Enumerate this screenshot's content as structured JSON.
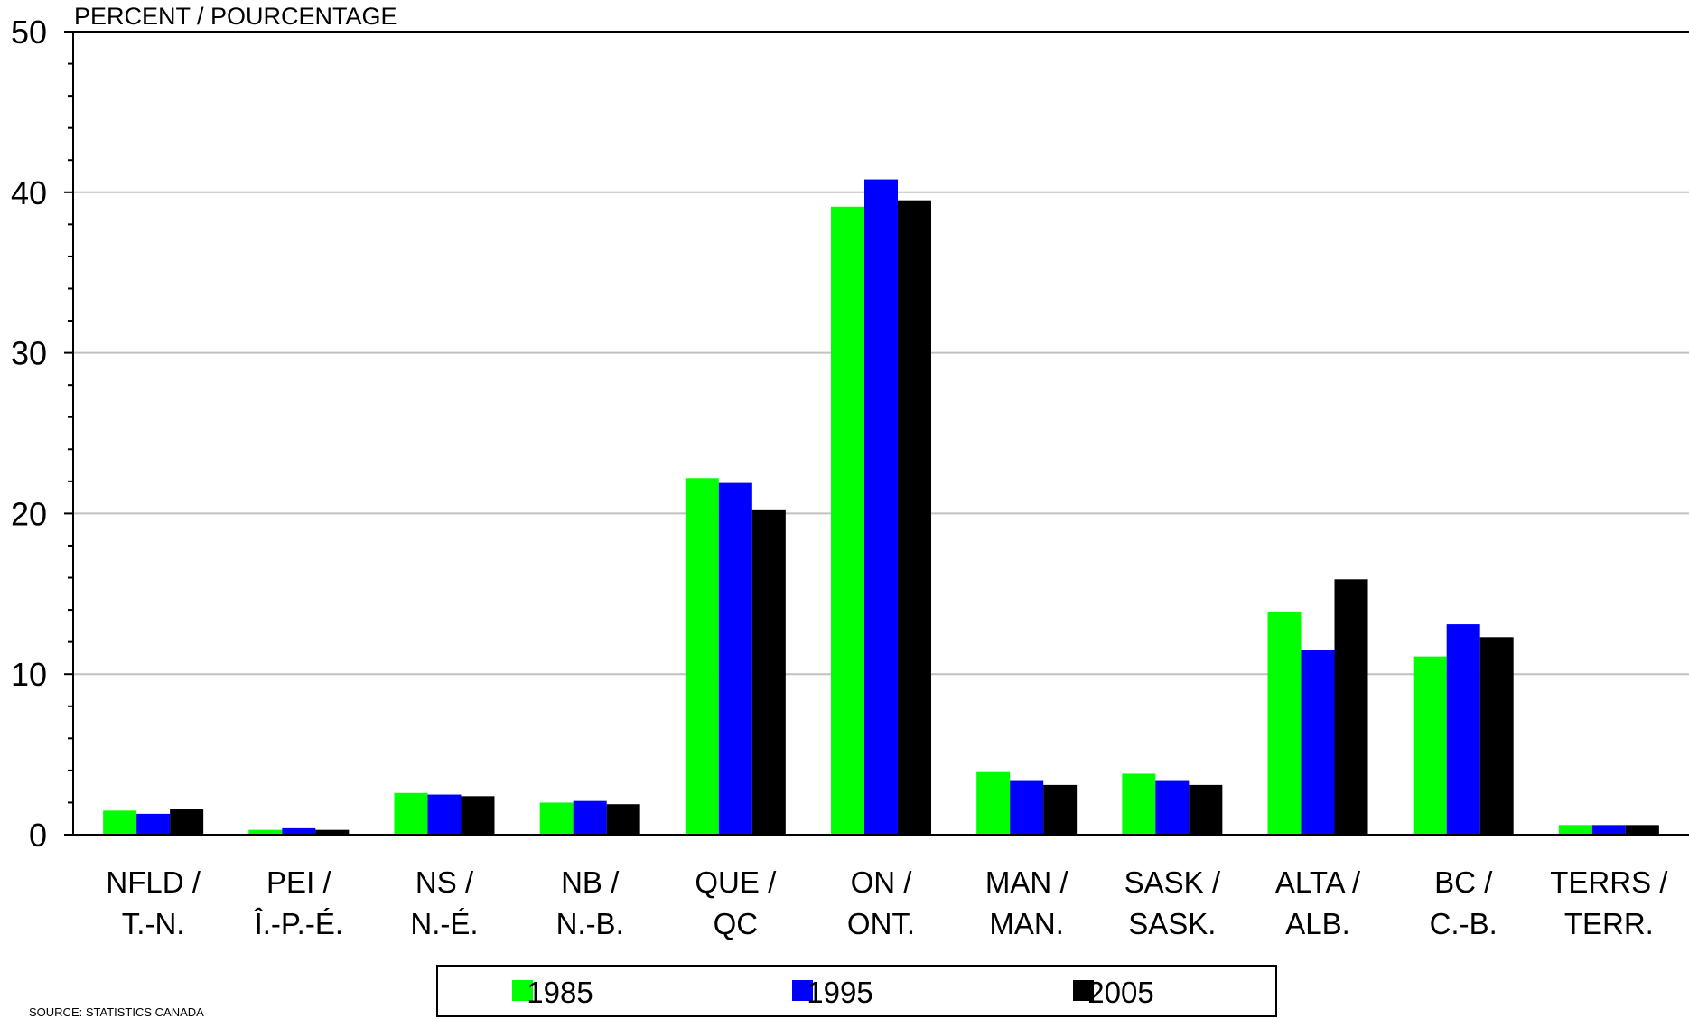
{
  "source": "SOURCE: STATISTICS CANADA",
  "chart_data": {
    "type": "bar",
    "ylabel": "PERCENT / POURCENTAGE",
    "ylim": [
      0,
      50
    ],
    "yticks": [
      "0",
      "10",
      "20",
      "30",
      "40",
      "50"
    ],
    "grid": true,
    "legend_position": "bottom",
    "categories": [
      {
        "line1": "NFLD /",
        "line2": "T.-N."
      },
      {
        "line1": "PEI /",
        "line2": "Î.-P.-É."
      },
      {
        "line1": "NS /",
        "line2": "N.-É."
      },
      {
        "line1": "NB /",
        "line2": "N.-B."
      },
      {
        "line1": "QUE /",
        "line2": "QC"
      },
      {
        "line1": "ON /",
        "line2": "ONT."
      },
      {
        "line1": "MAN /",
        "line2": "MAN."
      },
      {
        "line1": "SASK /",
        "line2": "SASK."
      },
      {
        "line1": "ALTA /",
        "line2": "ALB."
      },
      {
        "line1": "BC /",
        "line2": "C.-B."
      },
      {
        "line1": "TERRS /",
        "line2": "TERR."
      }
    ],
    "series": [
      {
        "name": "1985",
        "color": "#00ff00",
        "values": [
          1.5,
          0.3,
          2.6,
          2.0,
          22.2,
          39.1,
          3.9,
          3.8,
          13.9,
          11.1,
          0.6
        ]
      },
      {
        "name": "1995",
        "color": "#0000ff",
        "values": [
          1.3,
          0.4,
          2.5,
          2.1,
          21.9,
          40.8,
          3.4,
          3.4,
          11.5,
          13.1,
          0.6
        ]
      },
      {
        "name": "2005",
        "color": "#000000",
        "values": [
          1.6,
          0.3,
          2.4,
          1.9,
          20.2,
          39.5,
          3.1,
          3.1,
          15.9,
          12.3,
          0.6
        ]
      }
    ]
  }
}
